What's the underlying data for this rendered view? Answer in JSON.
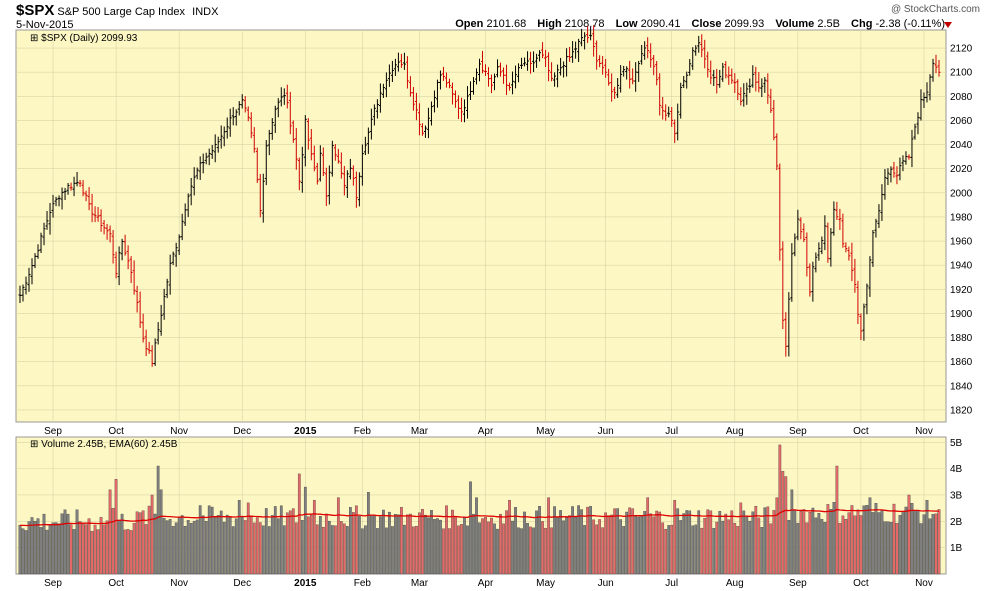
{
  "header": {
    "symbol": "$SPX",
    "name": "S&P 500 Large Cap Index",
    "exchange": "INDX",
    "date": "5-Nov-2015",
    "brand": "@ StockCharts.com",
    "open_label": "Open",
    "open": "2101.68",
    "high_label": "High",
    "high": "2108.78",
    "low_label": "Low",
    "low": "2090.41",
    "close_label": "Close",
    "close": "2099.93",
    "volume_label": "Volume",
    "volume": "2.5B",
    "chg_label": "Chg",
    "chg": "-2.38 (-0.11%)"
  },
  "colors": {
    "panel_bg": "#fdf8c3",
    "grid": "#d9d4a6",
    "up": "#000000",
    "down": "#d00000",
    "vol_up": "#7f7f7f",
    "vol_down": "#e46a6a",
    "ema": "#e00000"
  },
  "chart_data": [
    {
      "type": "ohlc",
      "title": "$SPX (Daily) 2099.93",
      "ylim": [
        1810,
        2135
      ],
      "y_ticks": [
        1820,
        1840,
        1860,
        1880,
        1900,
        1920,
        1940,
        1960,
        1980,
        2000,
        2020,
        2040,
        2060,
        2080,
        2100,
        2120
      ],
      "x_tick_labels": [
        "Sep",
        "Oct",
        "Nov",
        "Dec",
        "2015",
        "Feb",
        "Mar",
        "Apr",
        "May",
        "Jun",
        "Jul",
        "Aug",
        "Sep",
        "Oct",
        "Nov"
      ],
      "x_tick_index": [
        11,
        32,
        53,
        74,
        95,
        114,
        133,
        155,
        175,
        195,
        217,
        238,
        259,
        280,
        301
      ],
      "grid": true,
      "anchors": [
        [
          0,
          1915
        ],
        [
          4,
          1940
        ],
        [
          7,
          1962
        ],
        [
          10,
          1985
        ],
        [
          13,
          1998
        ],
        [
          16,
          2005
        ],
        [
          20,
          2010
        ],
        [
          23,
          1988
        ],
        [
          26,
          1978
        ],
        [
          30,
          1965
        ],
        [
          32,
          1935
        ],
        [
          34,
          1960
        ],
        [
          37,
          1935
        ],
        [
          41,
          1880
        ],
        [
          44,
          1860
        ],
        [
          47,
          1900
        ],
        [
          50,
          1940
        ],
        [
          53,
          1965
        ],
        [
          56,
          2000
        ],
        [
          59,
          2018
        ],
        [
          62,
          2030
        ],
        [
          65,
          2038
        ],
        [
          68,
          2052
        ],
        [
          71,
          2065
        ],
        [
          74,
          2075
        ],
        [
          76,
          2060
        ],
        [
          78,
          2035
        ],
        [
          80,
          1985
        ],
        [
          82,
          2040
        ],
        [
          85,
          2070
        ],
        [
          88,
          2082
        ],
        [
          89,
          2072
        ],
        [
          91,
          2045
        ],
        [
          93,
          2010
        ],
        [
          95,
          2058
        ],
        [
          97,
          2030
        ],
        [
          99,
          2010
        ],
        [
          100,
          2035
        ],
        [
          102,
          1995
        ],
        [
          104,
          2042
        ],
        [
          106,
          2025
        ],
        [
          108,
          2005
        ],
        [
          110,
          2022
        ],
        [
          112,
          1998
        ],
        [
          114,
          2035
        ],
        [
          116,
          2050
        ],
        [
          118,
          2068
        ],
        [
          121,
          2090
        ],
        [
          124,
          2104
        ],
        [
          126,
          2110
        ],
        [
          128,
          2105
        ],
        [
          130,
          2085
        ],
        [
          132,
          2068
        ],
        [
          134,
          2050
        ],
        [
          136,
          2062
        ],
        [
          138,
          2082
        ],
        [
          140,
          2098
        ],
        [
          142,
          2092
        ],
        [
          145,
          2075
        ],
        [
          147,
          2068
        ],
        [
          149,
          2078
        ],
        [
          151,
          2095
        ],
        [
          153,
          2108
        ],
        [
          155,
          2100
        ],
        [
          157,
          2090
        ],
        [
          159,
          2102
        ],
        [
          161,
          2098
        ],
        [
          163,
          2085
        ],
        [
          165,
          2098
        ],
        [
          168,
          2108
        ],
        [
          170,
          2105
        ],
        [
          173,
          2115
        ],
        [
          175,
          2110
        ],
        [
          177,
          2092
        ],
        [
          179,
          2100
        ],
        [
          181,
          2108
        ],
        [
          183,
          2112
        ],
        [
          186,
          2124
        ],
        [
          188,
          2130
        ],
        [
          190,
          2128
        ],
        [
          192,
          2112
        ],
        [
          194,
          2104
        ],
        [
          196,
          2090
        ],
        [
          198,
          2082
        ],
        [
          200,
          2100
        ],
        [
          202,
          2104
        ],
        [
          204,
          2090
        ],
        [
          206,
          2110
        ],
        [
          208,
          2122
        ],
        [
          210,
          2112
        ],
        [
          212,
          2095
        ],
        [
          213,
          2070
        ],
        [
          215,
          2065
        ],
        [
          217,
          2062
        ],
        [
          218,
          2050
        ],
        [
          220,
          2085
        ],
        [
          222,
          2100
        ],
        [
          224,
          2118
        ],
        [
          226,
          2125
        ],
        [
          228,
          2112
        ],
        [
          230,
          2098
        ],
        [
          232,
          2090
        ],
        [
          234,
          2102
        ],
        [
          236,
          2098
        ],
        [
          238,
          2092
        ],
        [
          240,
          2078
        ],
        [
          242,
          2084
        ],
        [
          244,
          2098
        ],
        [
          246,
          2088
        ],
        [
          248,
          2092
        ],
        [
          250,
          2070
        ],
        [
          252,
          2020
        ],
        [
          253,
          1950
        ],
        [
          254,
          1895
        ],
        [
          255,
          1870
        ],
        [
          257,
          1950
        ],
        [
          259,
          1980
        ],
        [
          261,
          1960
        ],
        [
          263,
          1915
        ],
        [
          264,
          1940
        ],
        [
          266,
          1955
        ],
        [
          268,
          1970
        ],
        [
          269,
          1945
        ],
        [
          271,
          1985
        ],
        [
          273,
          1978
        ],
        [
          274,
          1960
        ],
        [
          276,
          1945
        ],
        [
          278,
          1925
        ],
        [
          279,
          1900
        ],
        [
          280,
          1885
        ],
        [
          282,
          1925
        ],
        [
          284,
          1965
        ],
        [
          286,
          1985
        ],
        [
          288,
          2012
        ],
        [
          290,
          2022
        ],
        [
          292,
          2015
        ],
        [
          294,
          2025
        ],
        [
          296,
          2030
        ],
        [
          298,
          2055
        ],
        [
          300,
          2075
        ],
        [
          302,
          2085
        ],
        [
          304,
          2110
        ],
        [
          306,
          2100
        ]
      ],
      "last_close": 2099.93
    },
    {
      "type": "bar",
      "title": "Volume 2.45B, EMA(60) 2.45B",
      "ylim": [
        0,
        5.2
      ],
      "y_ticks": [
        1,
        2,
        3,
        4,
        5
      ],
      "y_tick_labels": [
        "1B",
        "2B",
        "3B",
        "4B",
        "5B"
      ],
      "spikes": [
        [
          30,
          3.2
        ],
        [
          31,
          2.5
        ],
        [
          32,
          3.6
        ],
        [
          44,
          3.0
        ],
        [
          46,
          4.1
        ],
        [
          47,
          3.2
        ],
        [
          60,
          2.6
        ],
        [
          73,
          2.8
        ],
        [
          76,
          2.7
        ],
        [
          93,
          3.8
        ],
        [
          95,
          3.3
        ],
        [
          98,
          2.8
        ],
        [
          106,
          2.9
        ],
        [
          116,
          3.1
        ],
        [
          150,
          3.5
        ],
        [
          152,
          2.9
        ],
        [
          163,
          2.8
        ],
        [
          176,
          2.9
        ],
        [
          186,
          2.6
        ],
        [
          209,
          2.9
        ],
        [
          218,
          2.8
        ],
        [
          240,
          2.7
        ],
        [
          252,
          2.9
        ],
        [
          253,
          4.9
        ],
        [
          254,
          3.9
        ],
        [
          255,
          3.7
        ],
        [
          257,
          3.2
        ],
        [
          272,
          4.1
        ],
        [
          283,
          2.9
        ],
        [
          296,
          3.0
        ]
      ],
      "last_volume": 2.45,
      "ema_last": 2.45
    }
  ]
}
